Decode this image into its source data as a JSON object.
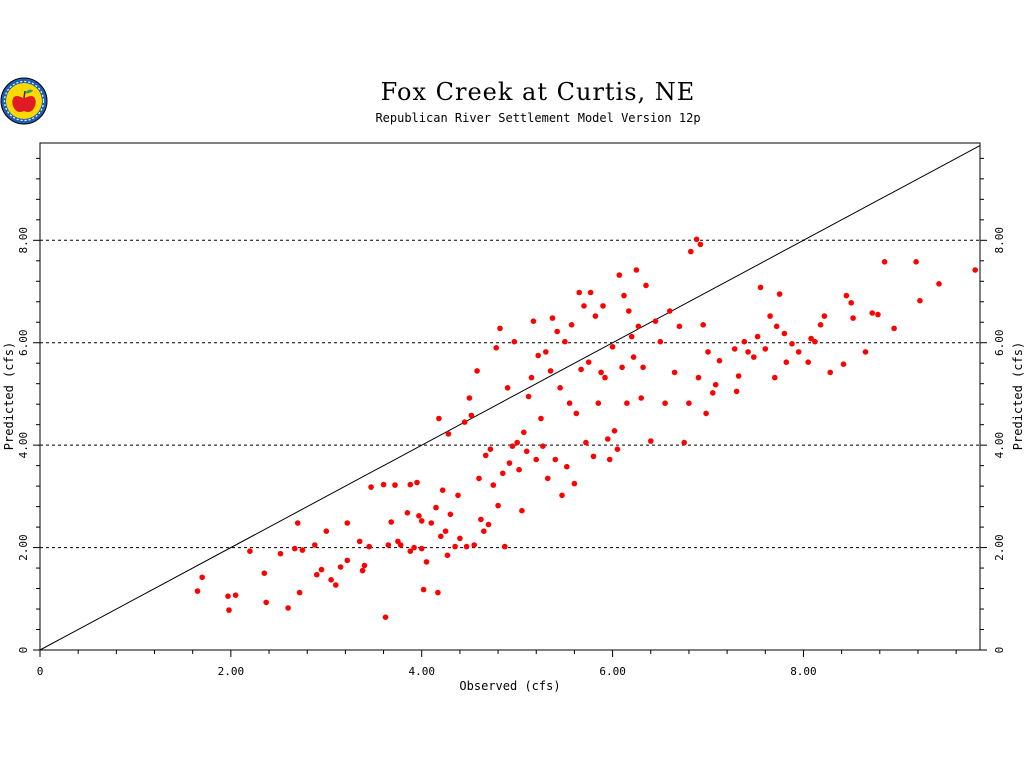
{
  "chart_data": {
    "type": "scatter",
    "title": "Fox Creek at Curtis, NE",
    "subtitle": "Republican River Settlement Model Version 12p",
    "xlabel": "Observed (cfs)",
    "ylabel": "Predicted (cfs)",
    "ylabel_right": "Predicted (cfs)",
    "xlim": [
      0,
      9.85
    ],
    "ylim": [
      0,
      9.9
    ],
    "x_ticks": [
      "0",
      "2.00",
      "4.00",
      "6.00",
      "8.00"
    ],
    "x_tick_values": [
      0,
      2,
      4,
      6,
      8
    ],
    "y_ticks": [
      "0",
      "2.00",
      "4.00",
      "6.00",
      "8.00"
    ],
    "y_tick_values": [
      0,
      2,
      4,
      6,
      8
    ],
    "grid": "horizontal dashed at y ticks",
    "reference_line": "1:1",
    "colors": {
      "points": "#ff0000",
      "line": "#000000",
      "grid": "#000000"
    },
    "logo": "apple-emblem",
    "series": [
      {
        "points": [
          [
            1.65,
            1.15
          ],
          [
            1.7,
            1.42
          ],
          [
            1.97,
            1.05
          ],
          [
            1.98,
            0.78
          ],
          [
            2.05,
            1.07
          ],
          [
            2.2,
            1.93
          ],
          [
            2.35,
            1.5
          ],
          [
            2.37,
            0.93
          ],
          [
            2.52,
            1.88
          ],
          [
            2.6,
            0.82
          ],
          [
            2.67,
            1.98
          ],
          [
            2.7,
            2.48
          ],
          [
            2.72,
            1.12
          ],
          [
            2.75,
            1.95
          ],
          [
            2.88,
            2.05
          ],
          [
            2.9,
            1.47
          ],
          [
            2.95,
            1.57
          ],
          [
            3.0,
            2.32
          ],
          [
            3.05,
            1.37
          ],
          [
            3.1,
            1.27
          ],
          [
            3.15,
            1.62
          ],
          [
            3.22,
            2.48
          ],
          [
            3.22,
            1.75
          ],
          [
            3.35,
            2.12
          ],
          [
            3.38,
            1.55
          ],
          [
            3.4,
            1.65
          ],
          [
            3.45,
            2.02
          ],
          [
            3.47,
            3.18
          ],
          [
            3.6,
            3.23
          ],
          [
            3.62,
            0.64
          ],
          [
            3.65,
            2.05
          ],
          [
            3.68,
            2.5
          ],
          [
            3.72,
            3.22
          ],
          [
            3.75,
            2.12
          ],
          [
            3.78,
            2.05
          ],
          [
            3.85,
            2.68
          ],
          [
            3.88,
            3.23
          ],
          [
            3.88,
            1.93
          ],
          [
            3.92,
            2.0
          ],
          [
            3.95,
            3.27
          ],
          [
            3.97,
            2.62
          ],
          [
            4.0,
            1.98
          ],
          [
            4.0,
            2.52
          ],
          [
            4.02,
            1.18
          ],
          [
            4.05,
            1.72
          ],
          [
            4.1,
            2.48
          ],
          [
            4.15,
            2.78
          ],
          [
            4.17,
            1.12
          ],
          [
            4.18,
            4.52
          ],
          [
            4.2,
            2.22
          ],
          [
            4.22,
            3.12
          ],
          [
            4.25,
            2.32
          ],
          [
            4.27,
            1.85
          ],
          [
            4.28,
            4.22
          ],
          [
            4.3,
            2.65
          ],
          [
            4.35,
            2.02
          ],
          [
            4.38,
            3.02
          ],
          [
            4.4,
            2.18
          ],
          [
            4.45,
            4.45
          ],
          [
            4.47,
            2.02
          ],
          [
            4.5,
            4.92
          ],
          [
            4.52,
            4.58
          ],
          [
            4.55,
            2.05
          ],
          [
            4.58,
            5.45
          ],
          [
            4.6,
            3.35
          ],
          [
            4.62,
            2.55
          ],
          [
            4.65,
            2.32
          ],
          [
            4.67,
            3.8
          ],
          [
            4.7,
            2.45
          ],
          [
            4.72,
            3.92
          ],
          [
            4.75,
            3.22
          ],
          [
            4.78,
            5.9
          ],
          [
            4.8,
            2.82
          ],
          [
            4.82,
            6.28
          ],
          [
            4.85,
            3.45
          ],
          [
            4.87,
            2.02
          ],
          [
            4.9,
            5.12
          ],
          [
            4.92,
            3.65
          ],
          [
            4.95,
            3.98
          ],
          [
            4.97,
            6.02
          ],
          [
            5.0,
            4.05
          ],
          [
            5.02,
            3.52
          ],
          [
            5.05,
            2.72
          ],
          [
            5.07,
            4.25
          ],
          [
            5.1,
            3.88
          ],
          [
            5.12,
            4.95
          ],
          [
            5.15,
            5.32
          ],
          [
            5.17,
            6.42
          ],
          [
            5.2,
            3.72
          ],
          [
            5.22,
            5.75
          ],
          [
            5.25,
            4.52
          ],
          [
            5.27,
            3.98
          ],
          [
            5.3,
            5.82
          ],
          [
            5.32,
            3.35
          ],
          [
            5.35,
            5.45
          ],
          [
            5.37,
            6.48
          ],
          [
            5.4,
            3.72
          ],
          [
            5.42,
            6.22
          ],
          [
            5.45,
            5.12
          ],
          [
            5.47,
            3.02
          ],
          [
            5.5,
            6.02
          ],
          [
            5.52,
            3.58
          ],
          [
            5.55,
            4.82
          ],
          [
            5.57,
            6.35
          ],
          [
            5.6,
            3.25
          ],
          [
            5.62,
            4.62
          ],
          [
            5.65,
            6.98
          ],
          [
            5.67,
            5.48
          ],
          [
            5.7,
            6.72
          ],
          [
            5.72,
            4.05
          ],
          [
            5.75,
            5.62
          ],
          [
            5.77,
            6.98
          ],
          [
            5.8,
            3.78
          ],
          [
            5.82,
            6.52
          ],
          [
            5.85,
            4.82
          ],
          [
            5.88,
            5.42
          ],
          [
            5.9,
            6.72
          ],
          [
            5.92,
            5.32
          ],
          [
            5.95,
            4.12
          ],
          [
            5.97,
            3.72
          ],
          [
            6.0,
            5.92
          ],
          [
            6.02,
            4.28
          ],
          [
            6.05,
            3.92
          ],
          [
            6.07,
            7.32
          ],
          [
            6.1,
            5.52
          ],
          [
            6.12,
            6.92
          ],
          [
            6.15,
            4.82
          ],
          [
            6.17,
            6.62
          ],
          [
            6.2,
            6.12
          ],
          [
            6.22,
            5.72
          ],
          [
            6.25,
            7.42
          ],
          [
            6.27,
            6.32
          ],
          [
            6.3,
            4.92
          ],
          [
            6.32,
            5.52
          ],
          [
            6.35,
            7.12
          ],
          [
            6.4,
            4.08
          ],
          [
            6.45,
            6.42
          ],
          [
            6.5,
            6.02
          ],
          [
            6.55,
            4.82
          ],
          [
            6.6,
            6.62
          ],
          [
            6.65,
            5.42
          ],
          [
            6.7,
            6.32
          ],
          [
            6.75,
            4.05
          ],
          [
            6.8,
            4.82
          ],
          [
            6.82,
            7.78
          ],
          [
            6.88,
            8.02
          ],
          [
            6.9,
            5.32
          ],
          [
            6.92,
            7.92
          ],
          [
            6.95,
            6.35
          ],
          [
            6.98,
            4.62
          ],
          [
            7.0,
            5.82
          ],
          [
            7.05,
            5.02
          ],
          [
            7.08,
            5.18
          ],
          [
            7.12,
            5.65
          ],
          [
            7.28,
            5.88
          ],
          [
            7.3,
            5.05
          ],
          [
            7.32,
            5.35
          ],
          [
            7.38,
            6.02
          ],
          [
            7.42,
            5.82
          ],
          [
            7.48,
            5.72
          ],
          [
            7.52,
            6.12
          ],
          [
            7.55,
            7.08
          ],
          [
            7.6,
            5.88
          ],
          [
            7.65,
            6.52
          ],
          [
            7.7,
            5.32
          ],
          [
            7.72,
            6.32
          ],
          [
            7.75,
            6.95
          ],
          [
            7.8,
            6.18
          ],
          [
            7.82,
            5.62
          ],
          [
            7.88,
            5.98
          ],
          [
            7.95,
            5.82
          ],
          [
            8.05,
            5.62
          ],
          [
            8.08,
            6.08
          ],
          [
            8.12,
            6.02
          ],
          [
            8.18,
            6.35
          ],
          [
            8.22,
            6.52
          ],
          [
            8.28,
            5.42
          ],
          [
            8.42,
            5.58
          ],
          [
            8.45,
            6.92
          ],
          [
            8.5,
            6.78
          ],
          [
            8.52,
            6.48
          ],
          [
            8.65,
            5.82
          ],
          [
            8.72,
            6.58
          ],
          [
            8.78,
            6.55
          ],
          [
            8.85,
            7.58
          ],
          [
            8.95,
            6.28
          ],
          [
            9.18,
            7.58
          ],
          [
            9.22,
            6.82
          ],
          [
            9.42,
            7.15
          ],
          [
            9.8,
            7.42
          ]
        ]
      }
    ]
  }
}
